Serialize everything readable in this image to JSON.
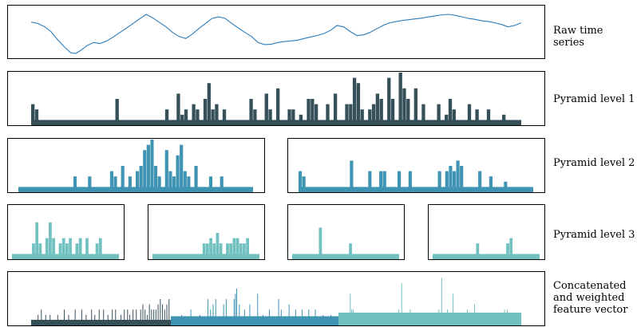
{
  "labels": {
    "raw": "Raw time series",
    "level1": "Pyramid level 1",
    "level2": "Pyramid level 2",
    "level3": "Pyramid level 3",
    "concat_1": "Concatenated",
    "concat_2": "and weighted",
    "concat_3": "feature vector"
  },
  "colors": {
    "line": "#2b7bba",
    "level1": "#36505a",
    "level2": "#3f93b3",
    "level3": "#72c1c1",
    "frame": "#000000"
  },
  "chart_data": [
    {
      "type": "line",
      "x": [
        0,
        4,
        8,
        12,
        16,
        20,
        24,
        27,
        30,
        34,
        38,
        42,
        46,
        50,
        54,
        58,
        62,
        66,
        70,
        74,
        78,
        82,
        86,
        90,
        94,
        98,
        102,
        106,
        110,
        114,
        118,
        122,
        126,
        130,
        134,
        138,
        142,
        146,
        150,
        154,
        158,
        162,
        166,
        170,
        174,
        178,
        182,
        186,
        190,
        194,
        198,
        202,
        206,
        210,
        214,
        218,
        222,
        226,
        230,
        234,
        238,
        242,
        246,
        250,
        254,
        258,
        262,
        266,
        270,
        274,
        278,
        282,
        286,
        290,
        294,
        298
      ],
      "y": [
        0.62,
        0.55,
        0.4,
        0.15,
        -0.25,
        -0.6,
        -0.9,
        -0.95,
        -0.8,
        -0.55,
        -0.4,
        -0.45,
        -0.32,
        -0.12,
        0.1,
        0.32,
        0.55,
        0.78,
        1.0,
        0.82,
        0.6,
        0.38,
        0.1,
        -0.1,
        -0.2,
        0.02,
        0.3,
        0.55,
        0.8,
        0.88,
        0.8,
        0.55,
        0.32,
        0.1,
        -0.1,
        -0.4,
        -0.5,
        -0.48,
        -0.4,
        -0.35,
        -0.32,
        -0.28,
        -0.2,
        -0.12,
        -0.05,
        0.05,
        0.2,
        0.45,
        0.38,
        0.15,
        -0.05,
        -0.02,
        0.1,
        0.28,
        0.45,
        0.58,
        0.65,
        0.7,
        0.74,
        0.78,
        0.82,
        0.88,
        0.93,
        0.98,
        1.0,
        0.95,
        0.88,
        0.8,
        0.75,
        0.68,
        0.65,
        0.58,
        0.5,
        0.38,
        0.45,
        0.58
      ],
      "ylim": [
        -1.1,
        1.2
      ],
      "grid": false
    },
    {
      "type": "bar",
      "level": 1,
      "n_bins": 128,
      "baseline": 1,
      "ylim": [
        0,
        10
      ],
      "spikes": [
        [
          0,
          4
        ],
        [
          1,
          3
        ],
        [
          22,
          5
        ],
        [
          35,
          3
        ],
        [
          38,
          6
        ],
        [
          39,
          2
        ],
        [
          40,
          3
        ],
        [
          42,
          4
        ],
        [
          43,
          3
        ],
        [
          45,
          5
        ],
        [
          46,
          8
        ],
        [
          47,
          3
        ],
        [
          48,
          4
        ],
        [
          50,
          3
        ],
        [
          57,
          5
        ],
        [
          58,
          3
        ],
        [
          61,
          6
        ],
        [
          62,
          3
        ],
        [
          64,
          7
        ],
        [
          67,
          3
        ],
        [
          68,
          3
        ],
        [
          70,
          2
        ],
        [
          72,
          5
        ],
        [
          73,
          5
        ],
        [
          74,
          4
        ],
        [
          77,
          4
        ],
        [
          79,
          6
        ],
        [
          82,
          4
        ],
        [
          83,
          4
        ],
        [
          84,
          9
        ],
        [
          85,
          8
        ],
        [
          86,
          3
        ],
        [
          88,
          3
        ],
        [
          89,
          4
        ],
        [
          90,
          6
        ],
        [
          91,
          5
        ],
        [
          93,
          9
        ],
        [
          94,
          5
        ],
        [
          96,
          10
        ],
        [
          97,
          7
        ],
        [
          98,
          5
        ],
        [
          100,
          7
        ],
        [
          102,
          4
        ],
        [
          106,
          4
        ],
        [
          108,
          2
        ],
        [
          109,
          5
        ],
        [
          110,
          3
        ],
        [
          114,
          4
        ],
        [
          116,
          3
        ],
        [
          119,
          3
        ],
        [
          123,
          2
        ]
      ]
    },
    {
      "type": "bar",
      "level": 2,
      "segments": [
        {
          "n_bins": 64,
          "baseline": 1,
          "ylim": [
            0,
            10
          ],
          "spikes": [
            [
              15,
              3
            ],
            [
              19,
              3
            ],
            [
              25,
              4
            ],
            [
              26,
              3
            ],
            [
              28,
              5
            ],
            [
              30,
              3
            ],
            [
              32,
              4
            ],
            [
              33,
              5
            ],
            [
              34,
              8
            ],
            [
              35,
              9
            ],
            [
              36,
              10
            ],
            [
              37,
              5
            ],
            [
              38,
              3
            ],
            [
              40,
              8
            ],
            [
              41,
              4
            ],
            [
              42,
              3
            ],
            [
              43,
              7
            ],
            [
              44,
              9
            ],
            [
              45,
              4
            ],
            [
              46,
              3
            ],
            [
              48,
              5
            ],
            [
              52,
              3
            ],
            [
              55,
              3
            ]
          ]
        },
        {
          "n_bins": 64,
          "baseline": 1,
          "ylim": [
            0,
            10
          ],
          "spikes": [
            [
              0,
              4
            ],
            [
              1,
              3
            ],
            [
              14,
              6
            ],
            [
              19,
              4
            ],
            [
              22,
              4
            ],
            [
              23,
              4
            ],
            [
              27,
              4
            ],
            [
              30,
              4
            ],
            [
              38,
              4
            ],
            [
              40,
              4
            ],
            [
              41,
              5
            ],
            [
              42,
              4
            ],
            [
              43,
              6
            ],
            [
              44,
              5
            ],
            [
              49,
              4
            ],
            [
              52,
              3
            ],
            [
              56,
              2
            ]
          ]
        }
      ]
    },
    {
      "type": "bar",
      "level": 3,
      "segments": [
        {
          "n_bins": 32,
          "baseline": 1,
          "ylim": [
            0,
            10
          ],
          "spikes": [
            [
              6,
              3
            ],
            [
              7,
              7
            ],
            [
              8,
              3
            ],
            [
              10,
              4
            ],
            [
              11,
              7
            ],
            [
              12,
              4
            ],
            [
              14,
              3
            ],
            [
              15,
              4
            ],
            [
              16,
              3
            ],
            [
              17,
              4
            ],
            [
              19,
              3
            ],
            [
              20,
              4
            ],
            [
              22,
              4
            ],
            [
              25,
              3
            ],
            [
              26,
              4
            ]
          ]
        },
        {
          "n_bins": 32,
          "baseline": 1,
          "ylim": [
            0,
            10
          ],
          "spikes": [
            [
              15,
              3
            ],
            [
              16,
              3
            ],
            [
              17,
              4
            ],
            [
              18,
              3
            ],
            [
              19,
              5
            ],
            [
              20,
              3
            ],
            [
              22,
              3
            ],
            [
              23,
              3
            ],
            [
              24,
              4
            ],
            [
              25,
              4
            ],
            [
              26,
              3
            ],
            [
              27,
              3
            ],
            [
              28,
              4
            ]
          ]
        },
        {
          "n_bins": 32,
          "baseline": 1,
          "ylim": [
            0,
            10
          ],
          "spikes": [
            [
              8,
              6
            ],
            [
              17,
              3
            ]
          ]
        },
        {
          "n_bins": 32,
          "baseline": 1,
          "ylim": [
            0,
            10
          ],
          "spikes": [
            [
              13,
              3
            ],
            [
              22,
              3
            ],
            [
              23,
              4
            ]
          ]
        }
      ]
    },
    {
      "type": "bar",
      "title": "",
      "segments": [
        {
          "level": 1,
          "n_bins": 128,
          "baseline": 1,
          "ylim": [
            0,
            10
          ],
          "spikes": [
            [
              6,
              2
            ],
            [
              9,
              3
            ],
            [
              13,
              2
            ],
            [
              17,
              2
            ],
            [
              24,
              2
            ],
            [
              30,
              3
            ],
            [
              34,
              2
            ],
            [
              40,
              3
            ],
            [
              46,
              3
            ],
            [
              50,
              2
            ],
            [
              55,
              3
            ],
            [
              58,
              2
            ],
            [
              62,
              3
            ],
            [
              66,
              3
            ],
            [
              70,
              2
            ],
            [
              74,
              3
            ],
            [
              77,
              3
            ],
            [
              82,
              2
            ],
            [
              85,
              3
            ],
            [
              88,
              3
            ],
            [
              90,
              2
            ],
            [
              93,
              3
            ],
            [
              96,
              3
            ],
            [
              100,
              3
            ],
            [
              102,
              4
            ],
            [
              104,
              3
            ],
            [
              106,
              2
            ],
            [
              108,
              4
            ],
            [
              110,
              3
            ],
            [
              112,
              3
            ],
            [
              114,
              3
            ],
            [
              116,
              4
            ],
            [
              118,
              5
            ],
            [
              120,
              4
            ],
            [
              122,
              3
            ],
            [
              124,
              4
            ],
            [
              126,
              5
            ]
          ]
        },
        {
          "level": 2,
          "n_bins": 128,
          "baseline": 1,
          "ylim": [
            0,
            10
          ],
          "spikes": [
            [
              8,
              2
            ],
            [
              15,
              3
            ],
            [
              22,
              2
            ],
            [
              28,
              5
            ],
            [
              30,
              3
            ],
            [
              32,
              4
            ],
            [
              34,
              5
            ],
            [
              40,
              4
            ],
            [
              42,
              5
            ],
            [
              48,
              5
            ],
            [
              49,
              6
            ],
            [
              50,
              7
            ],
            [
              52,
              4
            ],
            [
              56,
              3
            ],
            [
              60,
              4
            ],
            [
              66,
              6
            ],
            [
              70,
              2
            ],
            [
              75,
              3
            ],
            [
              82,
              5
            ],
            [
              84,
              3
            ],
            [
              90,
              4
            ],
            [
              95,
              3
            ],
            [
              100,
              3
            ],
            [
              105,
              3
            ],
            [
              110,
              3
            ],
            [
              116,
              2
            ],
            [
              122,
              2
            ]
          ]
        },
        {
          "level": 3,
          "n_bins": 128,
          "baseline": 1,
          "ylim": [
            0,
            10
          ],
          "spikes": [
            [
              6,
              2
            ],
            [
              8,
              6
            ],
            [
              9,
              3
            ],
            [
              10,
              3
            ],
            [
              12,
              2
            ],
            [
              14,
              2
            ],
            [
              16,
              2
            ],
            [
              40,
              2
            ],
            [
              42,
              3
            ],
            [
              44,
              8
            ],
            [
              45,
              2
            ],
            [
              48,
              2
            ],
            [
              50,
              3
            ],
            [
              70,
              3
            ],
            [
              72,
              9
            ],
            [
              76,
              3
            ],
            [
              80,
              6
            ],
            [
              90,
              3
            ],
            [
              95,
              4
            ],
            [
              104,
              2
            ],
            [
              116,
              3
            ],
            [
              118,
              3
            ],
            [
              122,
              2
            ]
          ]
        }
      ]
    }
  ]
}
